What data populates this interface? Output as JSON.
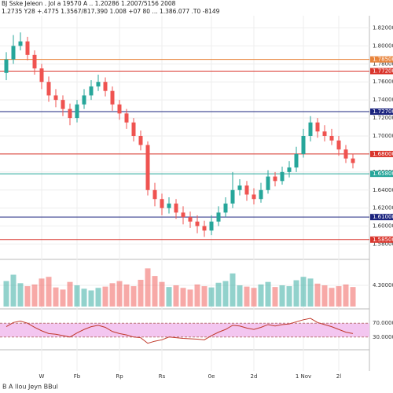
{
  "header": {
    "line1": "BJ Sske Jeleon . Jol a 19570 A .. 1.20286 1.2007/5156 2008",
    "line2": "1.2735 Y28 +.4775 1.3567/817.390 1.008 +07 80 ... 1.386.077 .T0 -8149"
  },
  "chart_data": {
    "type": "candlestick",
    "categories": [
      null,
      null,
      null,
      null,
      null,
      "W",
      null,
      null,
      null,
      null,
      "Fb",
      null,
      null,
      null,
      null,
      null,
      "Rp",
      null,
      null,
      null,
      null,
      null,
      "Rs",
      null,
      null,
      null,
      null,
      null,
      null,
      "0e",
      null,
      null,
      null,
      null,
      null,
      "2d",
      null,
      null,
      null,
      null,
      null,
      null,
      "1 Nov",
      null,
      null,
      null,
      null,
      "2l",
      null,
      null
    ],
    "ohlc": [
      [
        1.77,
        1.793,
        1.762,
        1.785
      ],
      [
        1.785,
        1.812,
        1.78,
        1.8
      ],
      [
        1.8,
        1.815,
        1.795,
        1.805
      ],
      [
        1.805,
        1.81,
        1.784,
        1.79
      ],
      [
        1.79,
        1.795,
        1.768,
        1.775
      ],
      [
        1.775,
        1.78,
        1.752,
        1.76
      ],
      [
        1.76,
        1.766,
        1.738,
        1.745
      ],
      [
        1.745,
        1.752,
        1.732,
        1.74
      ],
      [
        1.74,
        1.745,
        1.722,
        1.73
      ],
      [
        1.73,
        1.736,
        1.712,
        1.72
      ],
      [
        1.72,
        1.74,
        1.715,
        1.735
      ],
      [
        1.735,
        1.752,
        1.73,
        1.745
      ],
      [
        1.745,
        1.762,
        1.74,
        1.755
      ],
      [
        1.755,
        1.768,
        1.75,
        1.76
      ],
      [
        1.76,
        1.765,
        1.744,
        1.75
      ],
      [
        1.75,
        1.755,
        1.728,
        1.735
      ],
      [
        1.735,
        1.74,
        1.718,
        1.725
      ],
      [
        1.725,
        1.73,
        1.708,
        1.715
      ],
      [
        1.715,
        1.72,
        1.694,
        1.7
      ],
      [
        1.7,
        1.706,
        1.684,
        1.69
      ],
      [
        1.69,
        1.694,
        1.634,
        1.64
      ],
      [
        1.64,
        1.648,
        1.622,
        1.63
      ],
      [
        1.63,
        1.636,
        1.612,
        1.62
      ],
      [
        1.62,
        1.632,
        1.614,
        1.625
      ],
      [
        1.625,
        1.63,
        1.608,
        1.615
      ],
      [
        1.615,
        1.622,
        1.602,
        1.61
      ],
      [
        1.61,
        1.616,
        1.598,
        1.605
      ],
      [
        1.605,
        1.612,
        1.592,
        1.6
      ],
      [
        1.6,
        1.606,
        1.588,
        1.595
      ],
      [
        1.595,
        1.612,
        1.59,
        1.605
      ],
      [
        1.605,
        1.622,
        1.6,
        1.615
      ],
      [
        1.615,
        1.632,
        1.61,
        1.625
      ],
      [
        1.625,
        1.66,
        1.62,
        1.64
      ],
      [
        1.64,
        1.652,
        1.634,
        1.645
      ],
      [
        1.645,
        1.65,
        1.628,
        1.635
      ],
      [
        1.635,
        1.642,
        1.624,
        1.63
      ],
      [
        1.63,
        1.648,
        1.626,
        1.64
      ],
      [
        1.64,
        1.662,
        1.636,
        1.655
      ],
      [
        1.655,
        1.66,
        1.644,
        1.65
      ],
      [
        1.65,
        1.666,
        1.646,
        1.66
      ],
      [
        1.66,
        1.672,
        1.654,
        1.665
      ],
      [
        1.665,
        1.688,
        1.66,
        1.68
      ],
      [
        1.68,
        1.708,
        1.676,
        1.7
      ],
      [
        1.7,
        1.722,
        1.694,
        1.715
      ],
      [
        1.715,
        1.72,
        1.698,
        1.705
      ],
      [
        1.705,
        1.712,
        1.694,
        1.7
      ],
      [
        1.7,
        1.708,
        1.69,
        1.695
      ],
      [
        1.695,
        1.7,
        1.678,
        1.685
      ],
      [
        1.685,
        1.69,
        1.67,
        1.675
      ],
      [
        1.675,
        1.68,
        1.664,
        1.67
      ]
    ],
    "up_color": "#26a69a",
    "down_color": "#ef5350",
    "ylim": [
      1.57,
      1.83
    ],
    "yticks": [
      {
        "value": 1.82,
        "label": "1.82000"
      },
      {
        "value": 1.8,
        "label": "1.80000"
      },
      {
        "value": 1.78,
        "label": "1.78000"
      },
      {
        "value": 1.76,
        "label": "1.76000"
      },
      {
        "value": 1.74,
        "label": "1.74000"
      },
      {
        "value": 1.72,
        "label": "1.72000"
      },
      {
        "value": 1.7,
        "label": "1.70000"
      },
      {
        "value": 1.68,
        "label": "1.68000"
      },
      {
        "value": 1.66,
        "label": "1.66000"
      },
      {
        "value": 1.64,
        "label": "1.64000"
      },
      {
        "value": 1.62,
        "label": "1.62000"
      },
      {
        "value": 1.6,
        "label": "1.60000"
      },
      {
        "value": 1.58,
        "label": "1.58000"
      }
    ],
    "grid": true,
    "levels": [
      {
        "value": 1.785,
        "label": "1.78500",
        "color": "#e8833a"
      },
      {
        "value": 1.772,
        "label": "1.77200",
        "color": "#d9342b"
      },
      {
        "value": 1.727,
        "label": "1.72700",
        "color": "#1a237e"
      },
      {
        "value": 1.68,
        "label": "1.68000",
        "color": "#d9342b"
      },
      {
        "value": 1.658,
        "label": "1.65800",
        "color": "#26a69a"
      },
      {
        "value": 1.61,
        "label": "1.61000",
        "color": "#1a237e"
      },
      {
        "value": 1.585,
        "label": "1.58500",
        "color": "#d9342b"
      }
    ],
    "volume": {
      "ylim": [
        0,
        100
      ],
      "yticks": [
        {
          "value": 50,
          "label": "4.30000"
        }
      ],
      "values": [
        60,
        75,
        55,
        48,
        52,
        66,
        70,
        45,
        40,
        58,
        50,
        42,
        38,
        44,
        47,
        55,
        60,
        52,
        48,
        63,
        90,
        72,
        58,
        46,
        50,
        44,
        40,
        52,
        48,
        45,
        56,
        60,
        78,
        50,
        47,
        44,
        52,
        58,
        46,
        50,
        48,
        62,
        70,
        66,
        54,
        50,
        44,
        48,
        52,
        46
      ]
    },
    "oscillator": {
      "ylim": [
        0,
        100
      ],
      "band": [
        30,
        70
      ],
      "yticks": [
        {
          "value": 70,
          "label": "70.0000"
        },
        {
          "value": 30,
          "label": "30.0000"
        }
      ],
      "color": "#c0392b",
      "values": [
        60,
        72,
        76,
        70,
        58,
        48,
        40,
        38,
        34,
        30,
        42,
        52,
        60,
        64,
        58,
        46,
        40,
        36,
        30,
        28,
        12,
        18,
        22,
        30,
        28,
        26,
        25,
        24,
        22,
        34,
        44,
        52,
        64,
        62,
        56,
        52,
        58,
        66,
        62,
        66,
        68,
        74,
        80,
        84,
        72,
        66,
        60,
        52,
        44,
        40
      ]
    },
    "footer": "B A llou Jeyn BBul"
  }
}
